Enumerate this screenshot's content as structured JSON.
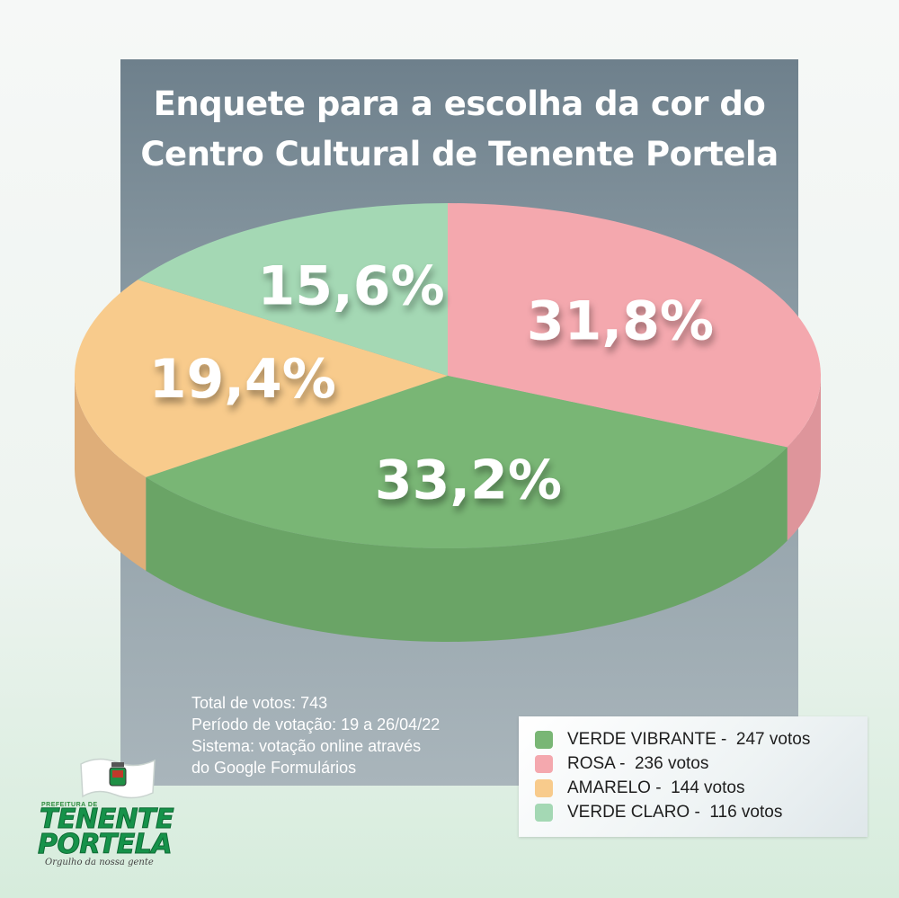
{
  "chart_data": {
    "type": "pie",
    "title_lines": [
      "Enquete para a escolha da cor do",
      "Centro Cultural de Tenente Portela"
    ],
    "slices": [
      {
        "label": "VERDE VIBRANTE",
        "votes": 247,
        "percent_label": "33,2%",
        "value": 33.2,
        "color": "#79b675",
        "side_color": "#6aa466"
      },
      {
        "label": "ROSA",
        "votes": 236,
        "percent_label": "31,8%",
        "value": 31.8,
        "color": "#f4a8ae",
        "side_color": "#de959b"
      },
      {
        "label": "AMARELO",
        "votes": 144,
        "percent_label": "19,4%",
        "value": 19.4,
        "color": "#f8cb8c",
        "side_color": "#dfae79"
      },
      {
        "label": "VERDE CLARO",
        "votes": 116,
        "percent_label": "15,6%",
        "value": 15.6,
        "color": "#a4d8b4",
        "side_color": "#8ec39e"
      }
    ]
  },
  "info": {
    "total": "Total de votos: 743",
    "period": "Período de votação: 19 a 26/04/22",
    "system_line1": "Sistema: votação online através",
    "system_line2": "do Google Formulários"
  },
  "legend": [
    {
      "text": "VERDE VIBRANTE -  247 votos",
      "color": "#79b675"
    },
    {
      "text": "ROSA -  236 votos",
      "color": "#f4a8ae"
    },
    {
      "text": "AMARELO -  144 votos",
      "color": "#f8cb8c"
    },
    {
      "text": "VERDE CLARO -  116 votos",
      "color": "#a4d8b4"
    }
  ],
  "logo": {
    "small_text": "PREFEITURA DE",
    "name_line1": "TENENTE",
    "name_line2": "PORTELA",
    "slogan": "Orgulho da nossa gente"
  }
}
